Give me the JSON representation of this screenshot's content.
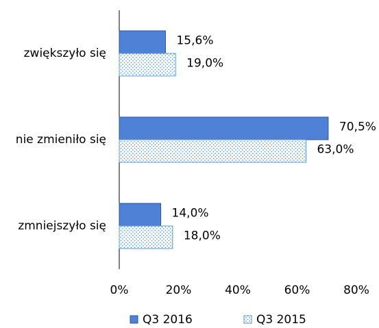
{
  "chart_data": {
    "type": "bar",
    "orientation": "horizontal",
    "categories": [
      "zwiększyło się",
      "nie zmieniło się",
      "zmniejszyło się"
    ],
    "series": [
      {
        "name": "Q3 2016",
        "color": "#4f81d6",
        "values": [
          15.6,
          70.5,
          14.0
        ],
        "value_labels": [
          "15,6%",
          "70,5%",
          "14,0%"
        ]
      },
      {
        "name": "Q3 2015",
        "color": "#5b9bd5",
        "pattern": "dots",
        "values": [
          19.0,
          63.0,
          18.0
        ],
        "value_labels": [
          "19,0%",
          "63,0%",
          "18,0%"
        ]
      }
    ],
    "xlim": [
      0,
      80
    ],
    "xticks": [
      {
        "value": 0,
        "label": "0%"
      },
      {
        "value": 20,
        "label": "20%"
      },
      {
        "value": 40,
        "label": "40%"
      },
      {
        "value": 60,
        "label": "60%"
      },
      {
        "value": 80,
        "label": "80%"
      }
    ],
    "grid": false,
    "legend": "bottom"
  }
}
